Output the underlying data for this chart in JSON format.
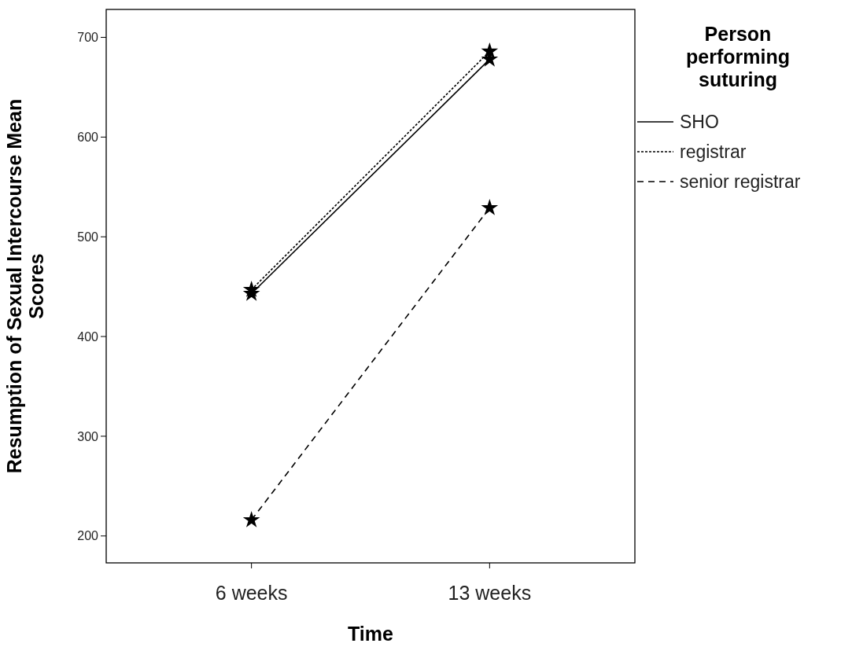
{
  "chart_data": {
    "type": "line",
    "xlabel": "Time",
    "ylabel": "Resumption of Sexual Intercourse Mean Scores",
    "legend_title": "Person performing suturing",
    "categories": [
      "6 weeks",
      "13 weeks"
    ],
    "series": [
      {
        "name": "SHO",
        "color": "#000000",
        "line_style": "solid",
        "values": [
          443,
          678
        ]
      },
      {
        "name": "registrar",
        "color": "#000000",
        "line_style": "dotted",
        "values": [
          447,
          686
        ]
      },
      {
        "name": "senior registrar",
        "color": "#000000",
        "line_style": "dashed",
        "values": [
          216,
          529
        ]
      }
    ],
    "ylim": [
      173,
      728
    ],
    "yticks": [
      200,
      300,
      400,
      500,
      600,
      700
    ],
    "marker": "star",
    "legend": "right",
    "grid": false
  }
}
